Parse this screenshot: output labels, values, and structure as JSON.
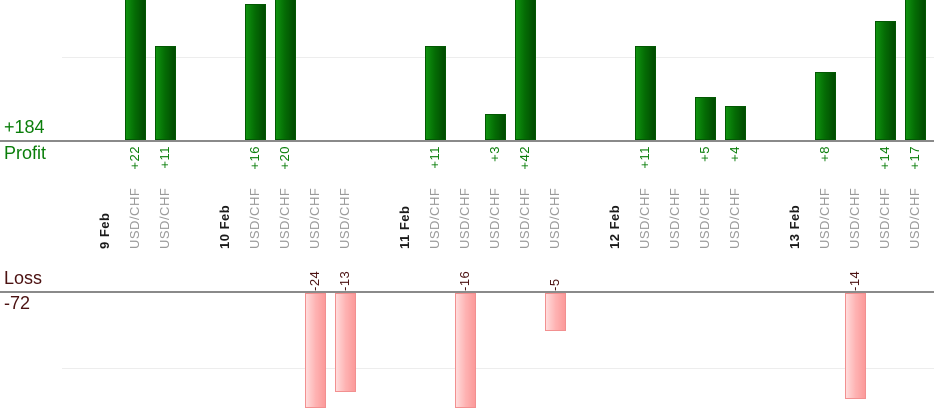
{
  "chart_data": {
    "type": "bar",
    "orientation": "vertical",
    "grid": true,
    "profit_axis": {
      "axis_label": "Profit",
      "total_label": "+184",
      "total": 184,
      "gridline_value": 10,
      "visible_value_max": 16.5
    },
    "loss_axis": {
      "axis_label": "Loss",
      "total_label": "-72",
      "total": -72,
      "gridline_value": -10,
      "visible_value_min": -15
    },
    "groups": [
      {
        "date": "9 Feb",
        "trades": [
          {
            "symbol": "USD/CHF",
            "value": 22,
            "label": "+22"
          },
          {
            "symbol": "USD/CHF",
            "value": 11,
            "label": "+11"
          }
        ]
      },
      {
        "date": "10 Feb",
        "trades": [
          {
            "symbol": "USD/CHF",
            "value": 16,
            "label": "+16"
          },
          {
            "symbol": "USD/CHF",
            "value": 20,
            "label": "+20"
          },
          {
            "symbol": "USD/CHF",
            "value": -24,
            "label": "-24"
          },
          {
            "symbol": "USD/CHF",
            "value": -13,
            "label": "-13"
          }
        ]
      },
      {
        "date": "11 Feb",
        "trades": [
          {
            "symbol": "USD/CHF",
            "value": 11,
            "label": "+11"
          },
          {
            "symbol": "USD/CHF",
            "value": -16,
            "label": "-16"
          },
          {
            "symbol": "USD/CHF",
            "value": 3,
            "label": "+3"
          },
          {
            "symbol": "USD/CHF",
            "value": 42,
            "label": "+42"
          },
          {
            "symbol": "USD/CHF",
            "value": -5,
            "label": "-5"
          }
        ]
      },
      {
        "date": "12 Feb",
        "trades": [
          {
            "symbol": "USD/CHF",
            "value": 11,
            "label": "+11"
          },
          {
            "symbol": "USD/CHF",
            "value": 0,
            "label": ""
          },
          {
            "symbol": "USD/CHF",
            "value": 5,
            "label": "+5"
          },
          {
            "symbol": "USD/CHF",
            "value": 4,
            "label": "+4"
          }
        ]
      },
      {
        "date": "13 Feb",
        "trades": [
          {
            "symbol": "USD/CHF",
            "value": 8,
            "label": "+8"
          },
          {
            "symbol": "USD/CHF",
            "value": -14,
            "label": "-14"
          },
          {
            "symbol": "USD/CHF",
            "value": 14,
            "label": "+14"
          },
          {
            "symbol": "USD/CHF",
            "value": 17,
            "label": "+17"
          }
        ]
      }
    ],
    "colors": {
      "profit_text": "#0a7e0a",
      "loss_text": "#4c1212",
      "profit_bar_light": "#0f930f",
      "profit_bar_mid": "#056d05",
      "profit_bar_dark": "#014a01",
      "profit_bar_border": "#035803",
      "loss_bar_light": "#ffdcdc",
      "loss_bar_mid": "#feb3b3",
      "loss_bar_dark": "#fb9a9a",
      "loss_bar_border": "#f29090",
      "axis_line": "#8a8a8a",
      "gridline": "#ededed",
      "symbol_text": "#9a9a9a",
      "date_text": "#1a1a1a"
    }
  }
}
